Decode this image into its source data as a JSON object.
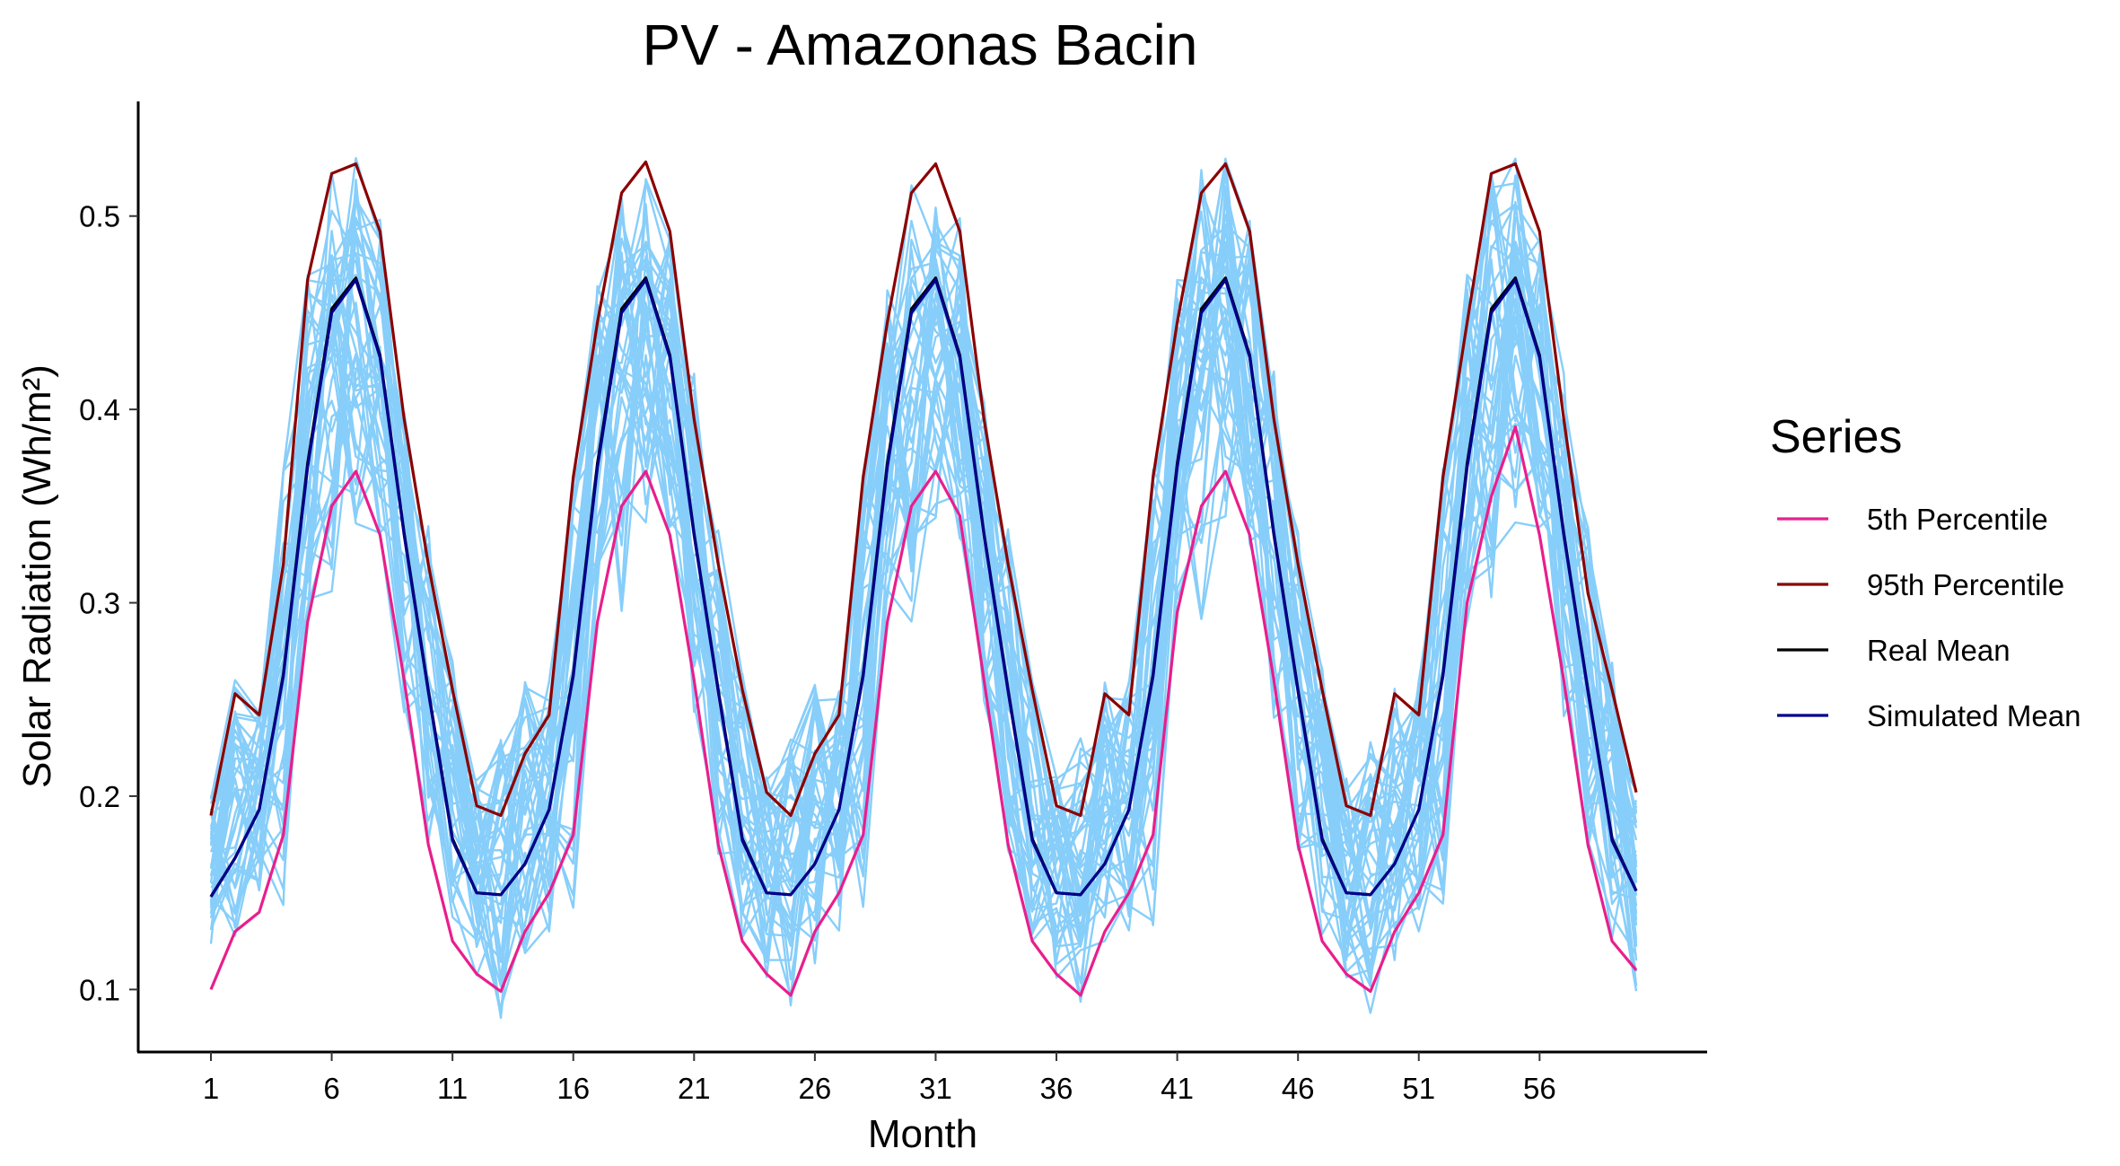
{
  "chart_data": {
    "type": "line",
    "title": "PV - Amazonas Bacin",
    "xlabel": "Month",
    "ylabel": "Solar Radiation (Wh/m²)",
    "xlim": [
      1,
      60
    ],
    "ylim": [
      0.07,
      0.55
    ],
    "x_ticks": [
      1,
      6,
      11,
      16,
      21,
      26,
      31,
      36,
      41,
      46,
      51,
      56
    ],
    "y_ticks": [
      0.1,
      0.2,
      0.3,
      0.4,
      0.5
    ],
    "y_tick_labels": [
      "0.1",
      "0.2",
      "0.3",
      "0.4",
      "0.5"
    ],
    "grid": false,
    "legend": {
      "title": "Series",
      "position": "right",
      "entries": [
        "5th Percentile",
        "95th Percentile",
        "Real Mean",
        "Simulated Mean"
      ]
    },
    "simulation_band": {
      "color": "#87CEFA",
      "count": 40,
      "lower_envelope": [
        0.12,
        0.125,
        0.145,
        0.13,
        0.29,
        0.29,
        0.34,
        0.33,
        0.24,
        0.17,
        0.12,
        0.1,
        0.085,
        0.11,
        0.13,
        0.13,
        0.29,
        0.29,
        0.34,
        0.33,
        0.24,
        0.17,
        0.12,
        0.1,
        0.085,
        0.11,
        0.13,
        0.13,
        0.29,
        0.29,
        0.34,
        0.33,
        0.24,
        0.17,
        0.12,
        0.1,
        0.085,
        0.11,
        0.13,
        0.13,
        0.29,
        0.29,
        0.34,
        0.33,
        0.24,
        0.17,
        0.12,
        0.1,
        0.085,
        0.11,
        0.13,
        0.13,
        0.29,
        0.29,
        0.34,
        0.33,
        0.24,
        0.17,
        0.12,
        0.095
      ],
      "upper_envelope": [
        0.2,
        0.26,
        0.26,
        0.37,
        0.47,
        0.525,
        0.53,
        0.5,
        0.42,
        0.34,
        0.27,
        0.21,
        0.23,
        0.26,
        0.26,
        0.37,
        0.47,
        0.525,
        0.53,
        0.5,
        0.42,
        0.34,
        0.27,
        0.21,
        0.23,
        0.26,
        0.26,
        0.37,
        0.47,
        0.525,
        0.53,
        0.5,
        0.42,
        0.34,
        0.27,
        0.21,
        0.23,
        0.26,
        0.26,
        0.37,
        0.47,
        0.525,
        0.53,
        0.5,
        0.42,
        0.34,
        0.27,
        0.21,
        0.23,
        0.26,
        0.26,
        0.37,
        0.47,
        0.525,
        0.53,
        0.5,
        0.42,
        0.34,
        0.27,
        0.21
      ]
    },
    "series": [
      {
        "name": "5th Percentile",
        "color": "#E91E8C",
        "values": [
          0.1,
          0.13,
          0.14,
          0.18,
          0.29,
          0.35,
          0.368,
          0.335,
          0.26,
          0.175,
          0.125,
          0.108,
          0.099,
          0.13,
          0.15,
          0.18,
          0.29,
          0.35,
          0.368,
          0.335,
          0.26,
          0.175,
          0.125,
          0.108,
          0.097,
          0.13,
          0.15,
          0.18,
          0.29,
          0.35,
          0.368,
          0.345,
          0.26,
          0.175,
          0.125,
          0.108,
          0.097,
          0.13,
          0.15,
          0.18,
          0.295,
          0.35,
          0.368,
          0.335,
          0.26,
          0.175,
          0.125,
          0.108,
          0.099,
          0.13,
          0.15,
          0.18,
          0.3,
          0.355,
          0.391,
          0.335,
          0.26,
          0.175,
          0.125,
          0.11
        ]
      },
      {
        "name": "95th Percentile",
        "color": "#8B0000",
        "values": [
          0.19,
          0.253,
          0.242,
          0.32,
          0.467,
          0.522,
          0.527,
          0.492,
          0.395,
          0.32,
          0.255,
          0.195,
          0.19,
          0.222,
          0.242,
          0.365,
          0.445,
          0.512,
          0.528,
          0.492,
          0.395,
          0.32,
          0.255,
          0.202,
          0.19,
          0.222,
          0.242,
          0.365,
          0.445,
          0.512,
          0.527,
          0.492,
          0.395,
          0.32,
          0.255,
          0.195,
          0.19,
          0.253,
          0.242,
          0.365,
          0.445,
          0.512,
          0.527,
          0.492,
          0.395,
          0.32,
          0.255,
          0.195,
          0.19,
          0.253,
          0.242,
          0.365,
          0.445,
          0.522,
          0.527,
          0.492,
          0.395,
          0.305,
          0.255,
          0.202
        ]
      },
      {
        "name": "Real Mean",
        "color": "#000000",
        "values": [
          0.148,
          0.168,
          0.193,
          0.263,
          0.372,
          0.452,
          0.468,
          0.428,
          0.336,
          0.255,
          0.178,
          0.15,
          0.149,
          0.165,
          0.193,
          0.263,
          0.372,
          0.452,
          0.468,
          0.428,
          0.336,
          0.255,
          0.178,
          0.15,
          0.149,
          0.165,
          0.193,
          0.263,
          0.372,
          0.452,
          0.468,
          0.428,
          0.336,
          0.255,
          0.178,
          0.15,
          0.149,
          0.165,
          0.193,
          0.263,
          0.372,
          0.452,
          0.468,
          0.428,
          0.336,
          0.255,
          0.178,
          0.15,
          0.149,
          0.165,
          0.193,
          0.263,
          0.372,
          0.452,
          0.468,
          0.428,
          0.336,
          0.255,
          0.178,
          0.151
        ]
      },
      {
        "name": "Simulated Mean",
        "color": "#00008B",
        "values": [
          0.148,
          0.168,
          0.193,
          0.262,
          0.37,
          0.45,
          0.467,
          0.427,
          0.335,
          0.254,
          0.177,
          0.15,
          0.149,
          0.165,
          0.193,
          0.262,
          0.37,
          0.45,
          0.467,
          0.427,
          0.335,
          0.254,
          0.177,
          0.15,
          0.149,
          0.165,
          0.193,
          0.262,
          0.37,
          0.45,
          0.467,
          0.427,
          0.335,
          0.254,
          0.177,
          0.15,
          0.149,
          0.165,
          0.193,
          0.262,
          0.37,
          0.45,
          0.467,
          0.427,
          0.335,
          0.254,
          0.177,
          0.15,
          0.149,
          0.165,
          0.193,
          0.262,
          0.37,
          0.45,
          0.467,
          0.427,
          0.335,
          0.254,
          0.177,
          0.151
        ]
      }
    ]
  }
}
